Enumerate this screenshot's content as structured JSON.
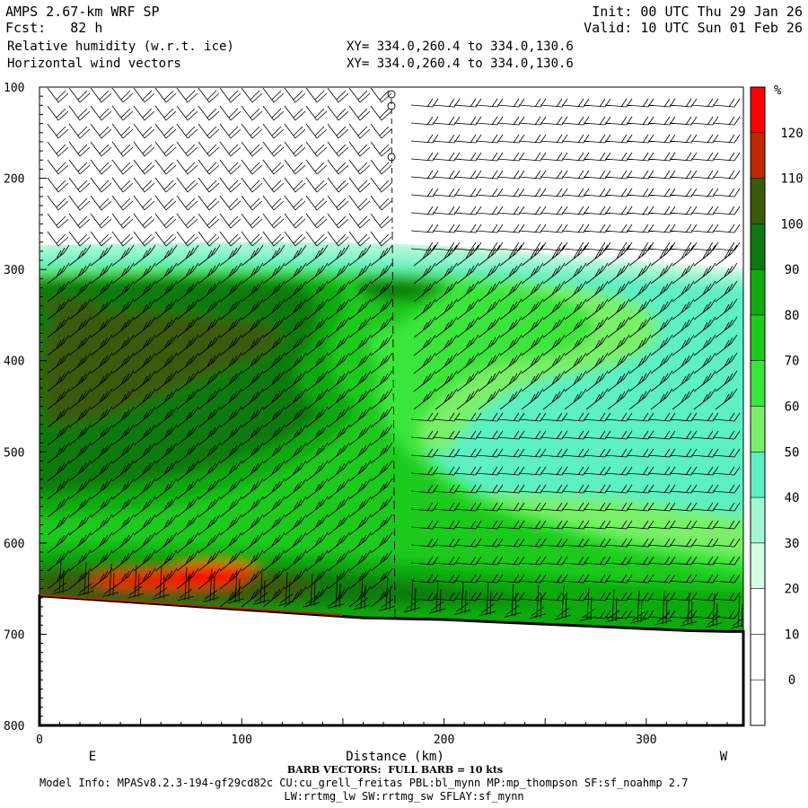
{
  "header": {
    "title": "AMPS 2.67-km WRF SP",
    "fcst": "Fcst:   82 h",
    "field1": "Relative humidity (w.r.t. ice)",
    "field2": "Horizontal wind vectors",
    "init": "Init: 00 UTC Thu 29 Jan 26",
    "valid": "Valid: 10 UTC Sun 01 Feb 26",
    "xy1": "XY= 334.0,260.4 to 334.0,130.6",
    "xy2": "XY= 334.0,260.4 to 334.0,130.6"
  },
  "chart_data": {
    "type": "heatmap",
    "title": "Relative humidity (w.r.t. ice)",
    "xlabel": "Distance (km)",
    "ylabel": "",
    "xlim": [
      0,
      348
    ],
    "ylim": [
      800,
      100
    ],
    "x_ticks": [
      0,
      100,
      200,
      300
    ],
    "y_ticks": [
      100,
      200,
      300,
      400,
      500,
      600,
      700,
      800
    ],
    "end_labels": {
      "left": "E",
      "right": "W"
    },
    "terrain": {
      "x": [
        0,
        20,
        40,
        60,
        80,
        100,
        120,
        140,
        160,
        180,
        200,
        220,
        240,
        260,
        280,
        300,
        320,
        340,
        348
      ],
      "p": [
        658,
        661,
        664,
        667,
        670,
        673,
        676,
        679,
        682,
        683,
        684,
        686,
        688,
        690,
        692,
        694,
        696,
        697,
        697
      ]
    },
    "colorbar": {
      "unit": "%",
      "levels": [
        0,
        10,
        20,
        30,
        40,
        50,
        60,
        70,
        80,
        90,
        100,
        110,
        120
      ],
      "colors": [
        "#ffffff",
        "#ffffff",
        "#ffffff",
        "#d2fce4",
        "#a2f8d2",
        "#5cf0c2",
        "#7af068",
        "#3ae63a",
        "#1eca1e",
        "#10aa10",
        "#0c7a10",
        "#3a5a08",
        "#c02800",
        "#ff0000"
      ]
    }
  },
  "footer": {
    "barb_note": "BARB VECTORS:  FULL BARB = 10 kts",
    "model_info": "Model Info: MPASv8.2.3-194-gf29cd82c CU:cu_grell_freitas PBL:bl_mynn MP:mp_thompson SF:sf_noahmp 2.7",
    "model_info2": "LW:rrtmg_lw SW:rrtmg_sw SFLAY:sf_mynn"
  }
}
